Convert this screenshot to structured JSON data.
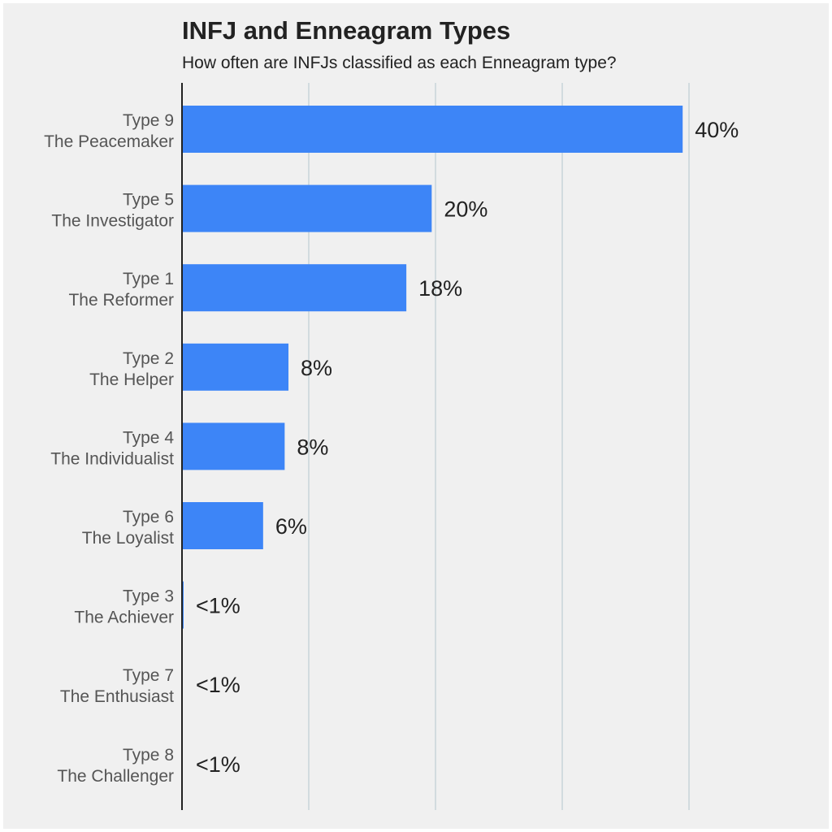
{
  "chart_data": {
    "type": "bar",
    "orientation": "horizontal",
    "title": "INFJ and Enneagram Types",
    "subtitle": "How often are INFJs classified as each Enneagram type?",
    "xlabel": "",
    "ylabel": "",
    "xlim": [
      0,
      40
    ],
    "grid": true,
    "categories": [
      {
        "line1": "Type 9",
        "line2": "The Peacemaker"
      },
      {
        "line1": "Type 5",
        "line2": "The Investigator"
      },
      {
        "line1": "Type 1",
        "line2": "The Reformer"
      },
      {
        "line1": "Type 2",
        "line2": "The Helper"
      },
      {
        "line1": "Type 4",
        "line2": "The Individualist"
      },
      {
        "line1": "Type 6",
        "line2": "The Loyalist"
      },
      {
        "line1": "Type 3",
        "line2": "The Achiever"
      },
      {
        "line1": "Type 7",
        "line2": "The Enthusiast"
      },
      {
        "line1": "Type 8",
        "line2": "The Challenger"
      }
    ],
    "values": [
      39.5,
      19.7,
      17.7,
      8.4,
      8.1,
      6.4,
      0.1,
      0,
      0
    ],
    "value_labels": [
      "40%",
      "20%",
      "18%",
      "8%",
      "8%",
      "6%",
      "<1%",
      "<1%",
      "<1%"
    ],
    "bar_color": "#3d85f7",
    "grid_color": "#c8d4d9",
    "axis_color": "#222222"
  }
}
